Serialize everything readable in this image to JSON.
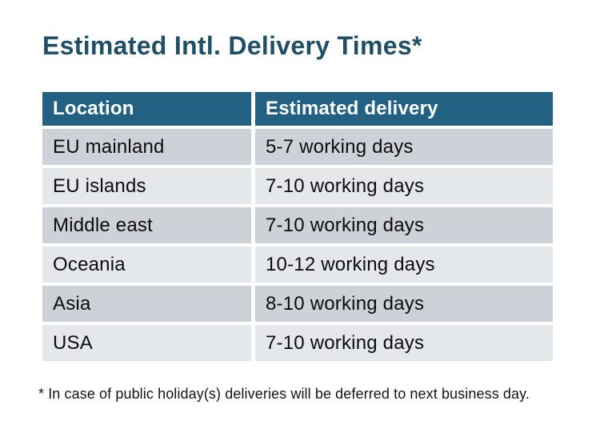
{
  "title": "Estimated Intl. Delivery Times*",
  "table": {
    "headers": [
      "Location",
      "Estimated delivery"
    ],
    "rows": [
      {
        "location": "EU mainland",
        "delivery": "5-7 working days"
      },
      {
        "location": "EU islands",
        "delivery": "7-10 working days"
      },
      {
        "location": "Middle east",
        "delivery": "7-10 working days"
      },
      {
        "location": "Oceania",
        "delivery": "10-12 working days"
      },
      {
        "location": "Asia",
        "delivery": "8-10 working days"
      },
      {
        "location": "USA",
        "delivery": "7-10 working days"
      }
    ]
  },
  "footnote": "* In case of public holiday(s) deliveries will be deferred to next business day.",
  "colors": {
    "title_text": "#1e4f67",
    "header_bg": "#226183",
    "header_text": "#ffffff",
    "row_dark": "#cdd1d8",
    "row_light": "#e5e8eb",
    "cell_text": "#0d0d0d",
    "footnote_text": "#141414",
    "page_bg": "#ffffff"
  },
  "chart_data": {
    "type": "table",
    "title": "Estimated Intl. Delivery Times*",
    "columns": [
      "Location",
      "Estimated delivery"
    ],
    "rows": [
      [
        "EU mainland",
        "5-7 working days"
      ],
      [
        "EU islands",
        "7-10 working days"
      ],
      [
        "Middle east",
        "7-10 working days"
      ],
      [
        "Oceania",
        "10-12 working days"
      ],
      [
        "Asia",
        "8-10 working days"
      ],
      [
        "USA",
        "7-10 working days"
      ]
    ],
    "footnote": "* In case of public holiday(s) deliveries will be deferred to next business day.",
    "layout": {
      "header_style": "solid teal band, white bold text",
      "row_style": "alternating gray bands starting dark",
      "grid": "white gaps between cells, no borders"
    }
  }
}
